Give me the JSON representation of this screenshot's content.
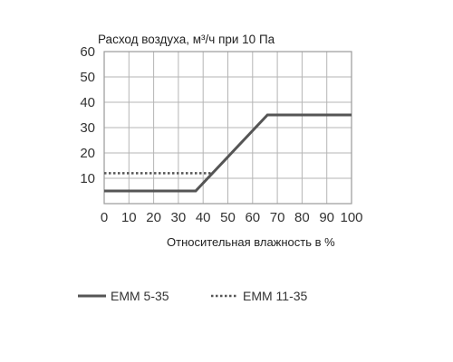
{
  "chart_data": {
    "type": "line",
    "title": "Расход воздуха, м³/ч при 10 Па",
    "xlabel": "Относительная влажность в %",
    "ylabel": "",
    "xlim": [
      0,
      100
    ],
    "ylim": [
      0,
      60
    ],
    "x_ticks": [
      "0",
      "10",
      "20",
      "30",
      "40",
      "50",
      "60",
      "70",
      "80",
      "90",
      "100"
    ],
    "y_ticks": [
      "10",
      "20",
      "30",
      "40",
      "50",
      "60"
    ],
    "x_tick_values": [
      0,
      10,
      20,
      30,
      40,
      50,
      60,
      70,
      80,
      90,
      100
    ],
    "y_tick_values": [
      10,
      20,
      30,
      40,
      50,
      60
    ],
    "grid": true,
    "legend_position": "bottom",
    "series": [
      {
        "name": "EMM 5-35",
        "style": "solid",
        "color": "#555555",
        "points": [
          {
            "x": 0,
            "y": 5
          },
          {
            "x": 37,
            "y": 5
          },
          {
            "x": 66,
            "y": 35
          },
          {
            "x": 100,
            "y": 35
          }
        ]
      },
      {
        "name": "EMM 11-35",
        "style": "dotted",
        "color": "#555555",
        "points": [
          {
            "x": 0,
            "y": 12
          },
          {
            "x": 44,
            "y": 12
          }
        ]
      }
    ]
  }
}
